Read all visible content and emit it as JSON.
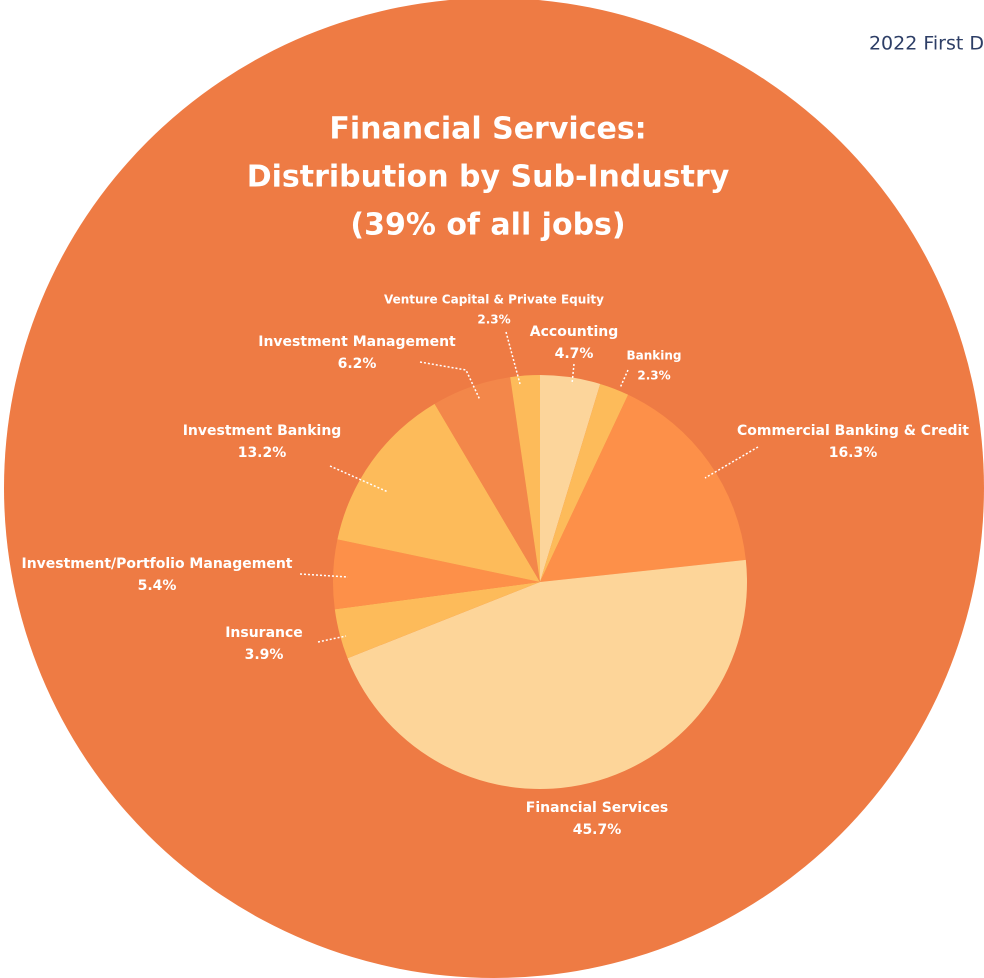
{
  "chart_data": {
    "type": "pie",
    "corner_text": "2022 First D",
    "title": [
      "Financial Services:",
      "Distribution by Sub-Industry",
      "(39% of all jobs)"
    ],
    "categories": [
      "Accounting",
      "Banking",
      "Commercial Banking & Credit",
      "Financial Services",
      "Insurance",
      "Investment/Portfolio Management",
      "Investment Banking",
      "Investment Management",
      "Venture Capital & Private Equity"
    ],
    "values": [
      4.7,
      2.3,
      16.3,
      45.7,
      3.9,
      5.4,
      13.2,
      6.2,
      2.3
    ],
    "value_labels": [
      "4.7%",
      "2.3%",
      "16.3%",
      "45.7%",
      "3.9%",
      "5.4%",
      "13.2%",
      "6.2%",
      "2.3%"
    ],
    "colors": [
      "#fcd59b",
      "#fdbb5a",
      "#fd9049",
      "#fdd599",
      "#fdbb5a",
      "#fd9049",
      "#fdbb5a",
      "#f3874a",
      "#fdbb5a"
    ]
  }
}
